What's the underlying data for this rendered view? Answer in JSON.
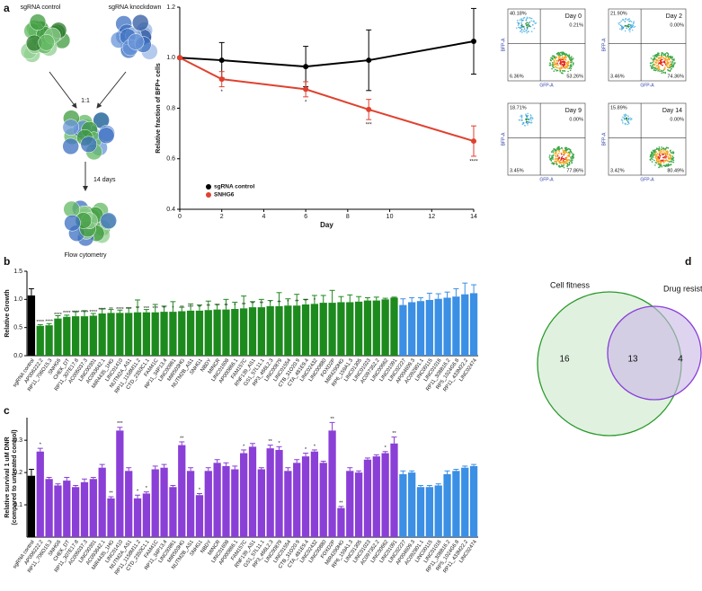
{
  "panel_labels": [
    "a",
    "b",
    "c",
    "d"
  ],
  "diagram": {
    "control": "sgRNA control",
    "knockdown": "sgRNA knockdown",
    "ratio": "1:1",
    "duration": "14 days",
    "readout": "Flow cytometry"
  },
  "chart_data": [
    {
      "type": "line",
      "x_label": "Day",
      "y_label": "Relative fraction of BFP+ cells",
      "x": [
        0,
        2,
        6,
        9,
        14
      ],
      "xlim": [
        0,
        14
      ],
      "xticks": [
        0,
        2,
        4,
        6,
        8,
        10,
        12,
        14
      ],
      "ylim": [
        0.4,
        1.2
      ],
      "yticks": [
        0.4,
        0.6,
        0.8,
        {
          "value": 1.0,
          "label": "1.0"
        },
        1.2
      ],
      "series": [
        {
          "name": "sgRNA control",
          "color": "#000000",
          "values": [
            1.0,
            0.99,
            0.965,
            0.99,
            1.065
          ],
          "errors": [
            0.0,
            0.07,
            0.08,
            0.12,
            0.13
          ],
          "annotations": [
            null,
            null,
            null,
            null,
            null
          ]
        },
        {
          "name": "SNHG6",
          "color": "#e0412f",
          "values": [
            1.0,
            0.915,
            0.875,
            0.795,
            0.67
          ],
          "errors": [
            0.0,
            0.03,
            0.03,
            0.04,
            0.06
          ],
          "annotations": [
            null,
            "*",
            "*",
            "***",
            "****"
          ]
        }
      ]
    },
    {
      "type": "bar",
      "y_label": "Relative Growth",
      "ylim": [
        0,
        1.5
      ],
      "yticks": [
        {
          "value": 0,
          "label": "0.0"
        },
        0.5,
        {
          "value": 1,
          "label": "1.0"
        },
        1.5
      ],
      "categories": [
        "sgRNA control",
        "AP006222.2",
        "RP11_706O15.3",
        "SNHG6",
        "CHEK_DT",
        "RP11_307E17.8",
        "AC005037.3",
        "LINC00301",
        "AC093642.1",
        "MIR4435_1HG",
        "LINC01410",
        "NUTM2A_AS1",
        "RP11_1158M11.2",
        "CTD_2350C1.1",
        "FAM41C",
        "RP11_34P13.4",
        "LINC00861",
        "MIR503HG",
        "NUTM2B_AS1",
        "SNHG1",
        "NBDY",
        "MINCR",
        "LINC01608",
        "AP000866.1",
        "FAM157C",
        "RNF139_AS1",
        "GS1_57L11.1",
        "RP3_466L2.3",
        "LINC00879",
        "LINC01554",
        "CTB_31O20.9",
        "CTA_481E9.4",
        "LINC02432",
        "LINC00880",
        "FOXD2P",
        "MIR4290HG",
        "RP6_159A1.3",
        "LINC01305",
        "LINC01023",
        "AC097352.2",
        "LINC00662",
        "LINC01091",
        "LINC02227",
        "AP004609.3",
        "AC092801.1",
        "LINC00115",
        "LINC01016",
        "RP11_308B16.2",
        "RP5_1024G6.8",
        "RP11_433M22.2",
        "LINC02474"
      ],
      "colors": [
        "#000000",
        "#1d8a1d",
        "#1d8a1d",
        "#1d8a1d",
        "#1d8a1d",
        "#1d8a1d",
        "#1d8a1d",
        "#1d8a1d",
        "#1d8a1d",
        "#1d8a1d",
        "#1d8a1d",
        "#1d8a1d",
        "#1d8a1d",
        "#1d8a1d",
        "#1d8a1d",
        "#1d8a1d",
        "#1d8a1d",
        "#1d8a1d",
        "#1d8a1d",
        "#1d8a1d",
        "#1d8a1d",
        "#1d8a1d",
        "#1d8a1d",
        "#1d8a1d",
        "#1d8a1d",
        "#1d8a1d",
        "#1d8a1d",
        "#1d8a1d",
        "#1d8a1d",
        "#1d8a1d",
        "#1d8a1d",
        "#1d8a1d",
        "#1d8a1d",
        "#1d8a1d",
        "#1d8a1d",
        "#1d8a1d",
        "#1d8a1d",
        "#1d8a1d",
        "#1d8a1d",
        "#1d8a1d",
        "#1d8a1d",
        "#1d8a1d",
        "#3b8fe4",
        "#3b8fe4",
        "#3b8fe4",
        "#3b8fe4",
        "#3b8fe4",
        "#3b8fe4",
        "#3b8fe4",
        "#3b8fe4",
        "#3b8fe4"
      ],
      "values": [
        1.07,
        0.53,
        0.54,
        0.66,
        0.69,
        0.7,
        0.7,
        0.71,
        0.75,
        0.76,
        0.76,
        0.76,
        0.77,
        0.77,
        0.77,
        0.78,
        0.78,
        0.79,
        0.8,
        0.8,
        0.81,
        0.82,
        0.82,
        0.83,
        0.84,
        0.86,
        0.86,
        0.88,
        0.88,
        0.89,
        0.89,
        0.91,
        0.92,
        0.94,
        0.94,
        0.95,
        0.95,
        0.96,
        0.98,
        0.98,
        1.0,
        1.03,
        0.9,
        0.95,
        0.97,
        0.99,
        1.01,
        1.03,
        1.05,
        1.09,
        1.11
      ],
      "errors": [
        0.12,
        0.02,
        0.03,
        0.05,
        0.03,
        0.08,
        0.1,
        0.04,
        0.08,
        0.06,
        0.05,
        0.09,
        0.22,
        0.05,
        0.14,
        0.1,
        0.18,
        0.07,
        0.12,
        0.1,
        0.16,
        0.09,
        0.18,
        0.12,
        0.22,
        0.1,
        0.14,
        0.1,
        0.24,
        0.12,
        0.2,
        0.09,
        0.15,
        0.13,
        0.22,
        0.1,
        0.13,
        0.09,
        0.05,
        0.06,
        0.02,
        0.01,
        0.11,
        0.08,
        0.06,
        0.12,
        0.09,
        0.1,
        0.14,
        0.2,
        0.15
      ],
      "annotations": [
        null,
        "****",
        "****",
        "****",
        "****",
        "****",
        "****",
        "****",
        "****",
        "**",
        "****",
        "***",
        "**",
        "***",
        "***",
        "**",
        "*",
        "**",
        "***",
        "**",
        "**",
        "**",
        "**",
        "*",
        "**",
        "**",
        "**",
        "*",
        "**",
        "*",
        "**",
        "**",
        "*",
        null,
        null,
        null,
        null,
        null,
        null,
        null,
        null,
        null,
        null,
        null,
        null,
        null,
        null,
        null,
        null,
        null,
        null
      ]
    },
    {
      "type": "bar",
      "y_label": [
        "Relative survival 1 uM DNR",
        "(compared to untreated control)"
      ],
      "ylim": [
        0,
        0.37
      ],
      "yticks": [
        0.1,
        0.2,
        0.3
      ],
      "categories": [
        "sgRNA control",
        "AP006222.2",
        "RP11_706O15.3",
        "SNHG6",
        "CHEK_DT",
        "RP11_307E17.8",
        "AC005037.3",
        "LINC00301",
        "AC093642.1",
        "MIR4435_1HG",
        "LINC01410",
        "NUTM2A_AS1",
        "RP11_1158M11.2",
        "CTD_2350C1.1",
        "FAM41C",
        "RP11_34P13.4",
        "LINC00861",
        "MIR503HG",
        "NUTM2B_AS1",
        "SNHG1",
        "NBDY",
        "MINCR",
        "LINC01608",
        "AP000866.1",
        "FAM157C",
        "RNF139_AS1",
        "GS1_57L11.1",
        "RP3_466L2.3",
        "LINC00879",
        "LINC01554",
        "CTB_31O20.9",
        "CTA_481E9.4",
        "LINC02432",
        "LINC00880",
        "FOXD2P",
        "MIR4290HG",
        "RP6_159A1.3",
        "LINC01305",
        "LINC01023",
        "AC097352.2",
        "LINC00662",
        "LINC01091",
        "LINC02227",
        "AP004609.3",
        "AC092801.1",
        "LINC00115",
        "LINC01016",
        "RP11_308B16.2",
        "RP5_1024G6.8",
        "RP11_433M22.2",
        "LINC02474"
      ],
      "colors": [
        "#000000",
        "#8a3fd6",
        "#8a3fd6",
        "#8a3fd6",
        "#8a3fd6",
        "#8a3fd6",
        "#8a3fd6",
        "#8a3fd6",
        "#8a3fd6",
        "#8a3fd6",
        "#8a3fd6",
        "#8a3fd6",
        "#8a3fd6",
        "#8a3fd6",
        "#8a3fd6",
        "#8a3fd6",
        "#8a3fd6",
        "#8a3fd6",
        "#8a3fd6",
        "#8a3fd6",
        "#8a3fd6",
        "#8a3fd6",
        "#8a3fd6",
        "#8a3fd6",
        "#8a3fd6",
        "#8a3fd6",
        "#8a3fd6",
        "#8a3fd6",
        "#8a3fd6",
        "#8a3fd6",
        "#8a3fd6",
        "#8a3fd6",
        "#8a3fd6",
        "#8a3fd6",
        "#8a3fd6",
        "#8a3fd6",
        "#8a3fd6",
        "#8a3fd6",
        "#8a3fd6",
        "#8a3fd6",
        "#8a3fd6",
        "#8a3fd6",
        "#3b8fe4",
        "#3b8fe4",
        "#3b8fe4",
        "#3b8fe4",
        "#3b8fe4",
        "#3b8fe4",
        "#3b8fe4",
        "#3b8fe4",
        "#3b8fe4"
      ],
      "values": [
        0.19,
        0.265,
        0.18,
        0.16,
        0.175,
        0.155,
        0.17,
        0.18,
        0.215,
        0.12,
        0.33,
        0.205,
        0.12,
        0.135,
        0.21,
        0.215,
        0.155,
        0.285,
        0.205,
        0.13,
        0.205,
        0.23,
        0.22,
        0.21,
        0.26,
        0.28,
        0.21,
        0.275,
        0.27,
        0.205,
        0.23,
        0.25,
        0.265,
        0.23,
        0.33,
        0.09,
        0.205,
        0.2,
        0.24,
        0.25,
        0.26,
        0.29,
        0.195,
        0.2,
        0.155,
        0.155,
        0.16,
        0.195,
        0.205,
        0.215,
        0.22
      ],
      "errors": [
        0.02,
        0.01,
        0.005,
        0.005,
        0.01,
        0.005,
        0.01,
        0.005,
        0.01,
        0.005,
        0.01,
        0.01,
        0.01,
        0.005,
        0.01,
        0.01,
        0.005,
        0.01,
        0.01,
        0.005,
        0.01,
        0.01,
        0.01,
        0.01,
        0.01,
        0.01,
        0.005,
        0.01,
        0.01,
        0.01,
        0.01,
        0.01,
        0.005,
        0.005,
        0.025,
        0.005,
        0.01,
        0.005,
        0.005,
        0.005,
        0.005,
        0.02,
        0.01,
        0.005,
        0.005,
        0.005,
        0.005,
        0.01,
        0.005,
        0.005,
        0.005
      ],
      "annotations": [
        null,
        "*",
        null,
        null,
        null,
        null,
        null,
        null,
        null,
        "**",
        "***",
        null,
        "*",
        "*",
        null,
        null,
        null,
        "**",
        null,
        "*",
        null,
        null,
        null,
        null,
        "*",
        null,
        null,
        "**",
        "*",
        null,
        null,
        "*",
        "*",
        null,
        "**",
        "**",
        null,
        null,
        null,
        null,
        "*",
        "**",
        null,
        null,
        null,
        null,
        null,
        null,
        null,
        null,
        null
      ]
    }
  ],
  "flow": {
    "x_label": "GFP-A",
    "y_label": "BFP-A",
    "plots": [
      {
        "title": "Day 0",
        "quadrants": [
          "40.18%",
          "0.21%",
          "6.36%",
          "53.26%"
        ]
      },
      {
        "title": "Day 2",
        "quadrants": [
          "21.90%",
          "0.00%",
          "3.46%",
          "74.36%"
        ]
      },
      {
        "title": "Day 9",
        "quadrants": [
          "18.71%",
          "0.00%",
          "3.45%",
          "77.86%"
        ]
      },
      {
        "title": "Day 14",
        "quadrants": [
          "15.89%",
          "0.00%",
          "3.42%",
          "80.49%"
        ]
      }
    ]
  },
  "venn": {
    "left": "Cell fitness",
    "right": "Drug resistance",
    "left_only": 16,
    "both": 13,
    "right_only": 4
  }
}
